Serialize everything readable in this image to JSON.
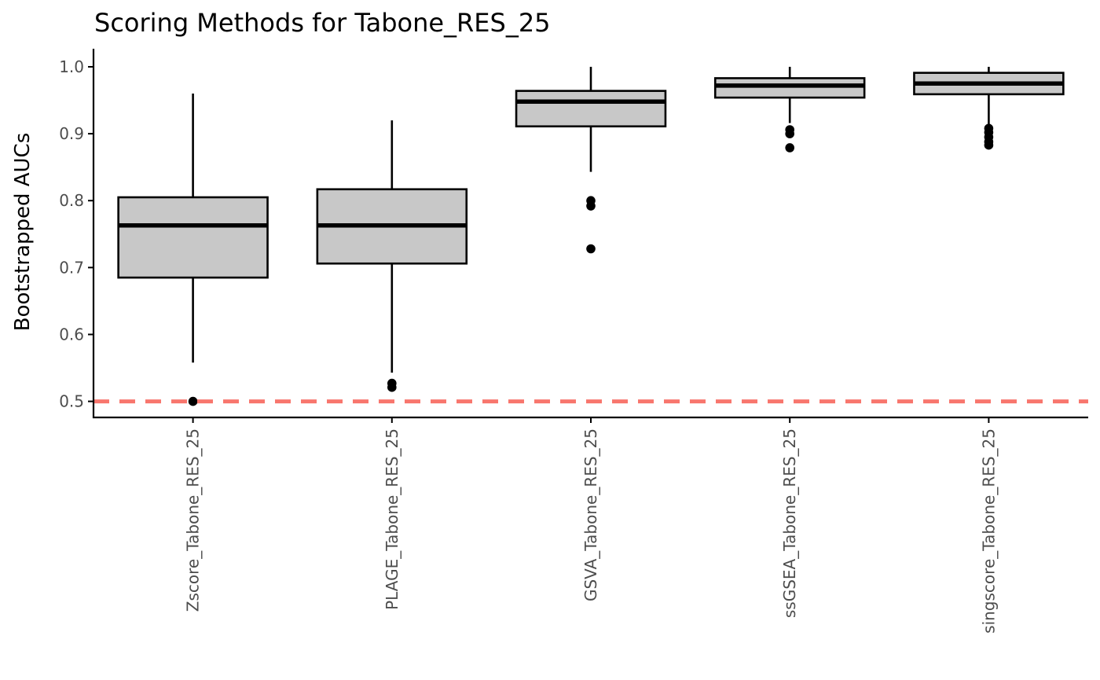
{
  "chart_data": {
    "type": "box",
    "title": "Scoring Methods for Tabone_RES_25",
    "xlabel": "",
    "ylabel": "Bootstrapped AUCs",
    "ylim": [
      0.476,
      1.027
    ],
    "yticks": [
      0.5,
      0.6,
      0.7,
      0.8,
      0.9,
      1.0
    ],
    "ytick_labels": [
      "0.5",
      "0.6",
      "0.7",
      "0.8",
      "0.9",
      "1.0"
    ],
    "grid": false,
    "legend": "none",
    "categories": [
      "Zscore_Tabone_RES_25",
      "PLAGE_Tabone_RES_25",
      "GSVA_Tabone_RES_25",
      "ssGSEA_Tabone_RES_25",
      "singscore_Tabone_RES_25"
    ],
    "boxes": [
      {
        "whisker_low": 0.558,
        "q1": 0.685,
        "median": 0.763,
        "q3": 0.805,
        "whisker_high": 0.96,
        "outliers": [
          0.5
        ]
      },
      {
        "whisker_low": 0.543,
        "q1": 0.706,
        "median": 0.763,
        "q3": 0.817,
        "whisker_high": 0.92,
        "outliers": [
          0.521,
          0.527
        ]
      },
      {
        "whisker_low": 0.843,
        "q1": 0.911,
        "median": 0.948,
        "q3": 0.964,
        "whisker_high": 1.0,
        "outliers": [
          0.728,
          0.792,
          0.8
        ]
      },
      {
        "whisker_low": 0.916,
        "q1": 0.954,
        "median": 0.972,
        "q3": 0.983,
        "whisker_high": 1.0,
        "outliers": [
          0.879,
          0.9,
          0.906
        ]
      },
      {
        "whisker_low": 0.91,
        "q1": 0.959,
        "median": 0.975,
        "q3": 0.991,
        "whisker_high": 1.0,
        "outliers": [
          0.883,
          0.888,
          0.895,
          0.902,
          0.908
        ]
      }
    ],
    "reference_line": {
      "y": 0.5,
      "style": "dashed"
    },
    "colors": {
      "box_fill": "#c8c8c8",
      "box_stroke": "#000000",
      "reference_line": "#f8766d",
      "axis": "#000000"
    }
  }
}
